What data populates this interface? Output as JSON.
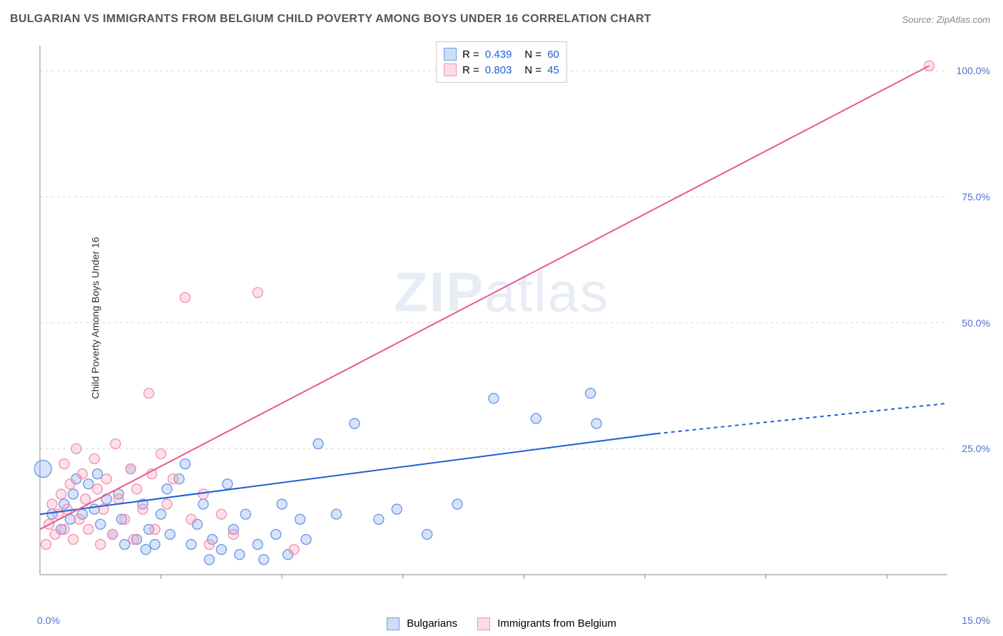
{
  "title": "BULGARIAN VS IMMIGRANTS FROM BELGIUM CHILD POVERTY AMONG BOYS UNDER 16 CORRELATION CHART",
  "source": "Source: ZipAtlas.com",
  "ylabel": "Child Poverty Among Boys Under 16",
  "watermark": "ZIPatlas",
  "chart": {
    "type": "scatter",
    "xlim": [
      0,
      15
    ],
    "ylim": [
      0,
      105
    ],
    "xticks": [
      {
        "v": 0,
        "label": "0.0%"
      },
      {
        "v": 15,
        "label": "15.0%"
      }
    ],
    "xticks_minor": [
      2,
      4,
      6,
      8,
      10,
      12,
      14
    ],
    "yticks": [
      {
        "v": 25,
        "label": "25.0%"
      },
      {
        "v": 50,
        "label": "50.0%"
      },
      {
        "v": 75,
        "label": "75.0%"
      },
      {
        "v": 100,
        "label": "100.0%"
      }
    ],
    "grid_color": "#d9d9d9",
    "grid_dash": "4,4",
    "axis_color": "#888888",
    "background_color": "#ffffff",
    "marker_radius": 7,
    "marker_radius_large": 12,
    "marker_fill_opacity": 0.28,
    "marker_stroke_width": 1.4,
    "line_width": 2
  },
  "series": [
    {
      "id": "bulgarians",
      "label": "Bulgarians",
      "color": "#6f9be8",
      "line_color": "#1f5fd6",
      "R": "0.439",
      "N": "60",
      "trend": {
        "x1": 0,
        "y1": 12,
        "x2": 10.2,
        "y2": 28,
        "x2_dash": 15,
        "y2_dash": 34
      },
      "points": [
        {
          "x": 0.05,
          "y": 21,
          "r": 12
        },
        {
          "x": 0.2,
          "y": 12
        },
        {
          "x": 0.35,
          "y": 9
        },
        {
          "x": 0.4,
          "y": 14
        },
        {
          "x": 0.5,
          "y": 11
        },
        {
          "x": 0.55,
          "y": 16
        },
        {
          "x": 0.6,
          "y": 19
        },
        {
          "x": 0.7,
          "y": 12
        },
        {
          "x": 0.8,
          "y": 18
        },
        {
          "x": 0.9,
          "y": 13
        },
        {
          "x": 0.95,
          "y": 20
        },
        {
          "x": 1.0,
          "y": 10
        },
        {
          "x": 1.1,
          "y": 15
        },
        {
          "x": 1.2,
          "y": 8
        },
        {
          "x": 1.3,
          "y": 16
        },
        {
          "x": 1.35,
          "y": 11
        },
        {
          "x": 1.4,
          "y": 6
        },
        {
          "x": 1.5,
          "y": 21
        },
        {
          "x": 1.6,
          "y": 7
        },
        {
          "x": 1.7,
          "y": 14
        },
        {
          "x": 1.75,
          "y": 5
        },
        {
          "x": 1.8,
          "y": 9
        },
        {
          "x": 1.9,
          "y": 6
        },
        {
          "x": 2.0,
          "y": 12
        },
        {
          "x": 2.1,
          "y": 17
        },
        {
          "x": 2.15,
          "y": 8
        },
        {
          "x": 2.3,
          "y": 19
        },
        {
          "x": 2.4,
          "y": 22
        },
        {
          "x": 2.5,
          "y": 6
        },
        {
          "x": 2.6,
          "y": 10
        },
        {
          "x": 2.7,
          "y": 14
        },
        {
          "x": 2.8,
          "y": 3
        },
        {
          "x": 2.85,
          "y": 7
        },
        {
          "x": 3.0,
          "y": 5
        },
        {
          "x": 3.1,
          "y": 18
        },
        {
          "x": 3.2,
          "y": 9
        },
        {
          "x": 3.3,
          "y": 4
        },
        {
          "x": 3.4,
          "y": 12
        },
        {
          "x": 3.6,
          "y": 6
        },
        {
          "x": 3.7,
          "y": 3
        },
        {
          "x": 3.9,
          "y": 8
        },
        {
          "x": 4.0,
          "y": 14
        },
        {
          "x": 4.1,
          "y": 4
        },
        {
          "x": 4.3,
          "y": 11
        },
        {
          "x": 4.4,
          "y": 7
        },
        {
          "x": 4.6,
          "y": 26
        },
        {
          "x": 4.9,
          "y": 12
        },
        {
          "x": 5.2,
          "y": 30
        },
        {
          "x": 5.6,
          "y": 11
        },
        {
          "x": 5.9,
          "y": 13
        },
        {
          "x": 6.4,
          "y": 8
        },
        {
          "x": 6.9,
          "y": 14
        },
        {
          "x": 7.5,
          "y": 35
        },
        {
          "x": 8.2,
          "y": 31
        },
        {
          "x": 9.1,
          "y": 36
        },
        {
          "x": 9.2,
          "y": 30
        }
      ]
    },
    {
      "id": "belgium",
      "label": "Immigrants from Belgium",
      "color": "#f494b1",
      "line_color": "#e85a8a",
      "R": "0.803",
      "N": "45",
      "trend": {
        "x1": 0,
        "y1": 9,
        "x2": 14.7,
        "y2": 101
      },
      "points": [
        {
          "x": 0.1,
          "y": 6
        },
        {
          "x": 0.15,
          "y": 10
        },
        {
          "x": 0.2,
          "y": 14
        },
        {
          "x": 0.25,
          "y": 8
        },
        {
          "x": 0.3,
          "y": 12
        },
        {
          "x": 0.35,
          "y": 16
        },
        {
          "x": 0.4,
          "y": 22
        },
        {
          "x": 0.4,
          "y": 9
        },
        {
          "x": 0.45,
          "y": 13
        },
        {
          "x": 0.5,
          "y": 18
        },
        {
          "x": 0.55,
          "y": 7
        },
        {
          "x": 0.6,
          "y": 25
        },
        {
          "x": 0.65,
          "y": 11
        },
        {
          "x": 0.7,
          "y": 20
        },
        {
          "x": 0.75,
          "y": 15
        },
        {
          "x": 0.8,
          "y": 9
        },
        {
          "x": 0.9,
          "y": 23
        },
        {
          "x": 0.95,
          "y": 17
        },
        {
          "x": 1.0,
          "y": 6
        },
        {
          "x": 1.05,
          "y": 13
        },
        {
          "x": 1.1,
          "y": 19
        },
        {
          "x": 1.2,
          "y": 8
        },
        {
          "x": 1.25,
          "y": 26
        },
        {
          "x": 1.3,
          "y": 15
        },
        {
          "x": 1.4,
          "y": 11
        },
        {
          "x": 1.5,
          "y": 21
        },
        {
          "x": 1.55,
          "y": 7
        },
        {
          "x": 1.6,
          "y": 17
        },
        {
          "x": 1.7,
          "y": 13
        },
        {
          "x": 1.8,
          "y": 36
        },
        {
          "x": 1.85,
          "y": 20
        },
        {
          "x": 1.9,
          "y": 9
        },
        {
          "x": 2.0,
          "y": 24
        },
        {
          "x": 2.1,
          "y": 14
        },
        {
          "x": 2.2,
          "y": 19
        },
        {
          "x": 2.4,
          "y": 55
        },
        {
          "x": 2.5,
          "y": 11
        },
        {
          "x": 2.7,
          "y": 16
        },
        {
          "x": 2.8,
          "y": 6
        },
        {
          "x": 3.0,
          "y": 12
        },
        {
          "x": 3.2,
          "y": 8
        },
        {
          "x": 3.6,
          "y": 56
        },
        {
          "x": 4.2,
          "y": 5
        },
        {
          "x": 14.7,
          "y": 101
        }
      ]
    }
  ],
  "legend_top": {
    "r_label": "R =",
    "n_label": "N ="
  },
  "legend_bottom": [
    {
      "series": "bulgarians"
    },
    {
      "series": "belgium"
    }
  ]
}
